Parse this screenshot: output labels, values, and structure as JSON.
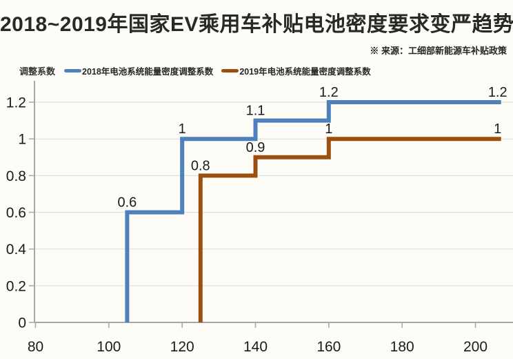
{
  "header": {
    "title": "2018~2019年国家EV乘用车补贴电池密度要求变严趋势",
    "source_note": "※ 来源：工细部新能源车补贴政策"
  },
  "colors": {
    "background": "#fdfcf6",
    "series_2018": "#4e80bc",
    "series_2019": "#9c500f",
    "gridline": "#dcdcdc",
    "axis": "#a6a6a6",
    "text": "#1a1a1a"
  },
  "chart_data": {
    "type": "line",
    "subtype": "step",
    "title": "2018~2019年国家EV乘用车补贴电池密度要求变严趋势",
    "xlabel": "",
    "ylabel": "调整系数",
    "xlim": [
      80,
      210
    ],
    "ylim": [
      0,
      1.3
    ],
    "grid": "horizontal",
    "legend_position": "top-left",
    "x_ticks": [
      {
        "value": 80,
        "label": "80"
      },
      {
        "value": 100,
        "label": "100"
      },
      {
        "value": 120,
        "label": "120"
      },
      {
        "value": 140,
        "label": "140"
      },
      {
        "value": 160,
        "label": "160"
      },
      {
        "value": 180,
        "label": "180"
      },
      {
        "value": 200,
        "label": "200"
      }
    ],
    "y_ticks": [
      {
        "value": 0,
        "label": "0"
      },
      {
        "value": 0.2,
        "label": "0.2"
      },
      {
        "value": 0.4,
        "label": "0.4"
      },
      {
        "value": 0.6,
        "label": "0.6"
      },
      {
        "value": 0.8,
        "label": "0.8"
      },
      {
        "value": 1,
        "label": "1"
      },
      {
        "value": 1.2,
        "label": "1.2"
      }
    ],
    "series": [
      {
        "name": "2018年电池系统能量密度调整系数",
        "color": "#4e80bc",
        "points": [
          [
            105,
            0
          ],
          [
            105,
            0.6
          ],
          [
            120,
            0.6
          ],
          [
            120,
            1
          ],
          [
            140,
            1
          ],
          [
            140,
            1.1
          ],
          [
            160,
            1.1
          ],
          [
            160,
            1.2
          ],
          [
            207,
            1.2
          ]
        ],
        "point_labels": [
          {
            "x": 105,
            "y": 0.6,
            "text": "0.6"
          },
          {
            "x": 120,
            "y": 1,
            "text": "1"
          },
          {
            "x": 140,
            "y": 1.1,
            "text": "1.1"
          },
          {
            "x": 160,
            "y": 1.2,
            "text": "1.2"
          },
          {
            "x": 207,
            "y": 1.2,
            "text": "1.2",
            "align": "end"
          }
        ]
      },
      {
        "name": "2019年电池系统能量密度调整系数",
        "color": "#9c500f",
        "points": [
          [
            125,
            0
          ],
          [
            125,
            0.8
          ],
          [
            140,
            0.8
          ],
          [
            140,
            0.9
          ],
          [
            160,
            0.9
          ],
          [
            160,
            1
          ],
          [
            207,
            1
          ]
        ],
        "point_labels": [
          {
            "x": 125,
            "y": 0.8,
            "text": "0.8"
          },
          {
            "x": 140,
            "y": 0.9,
            "text": "0.9"
          },
          {
            "x": 160,
            "y": 1,
            "text": "1"
          },
          {
            "x": 207,
            "y": 1,
            "text": "1",
            "align": "end"
          }
        ]
      }
    ]
  }
}
